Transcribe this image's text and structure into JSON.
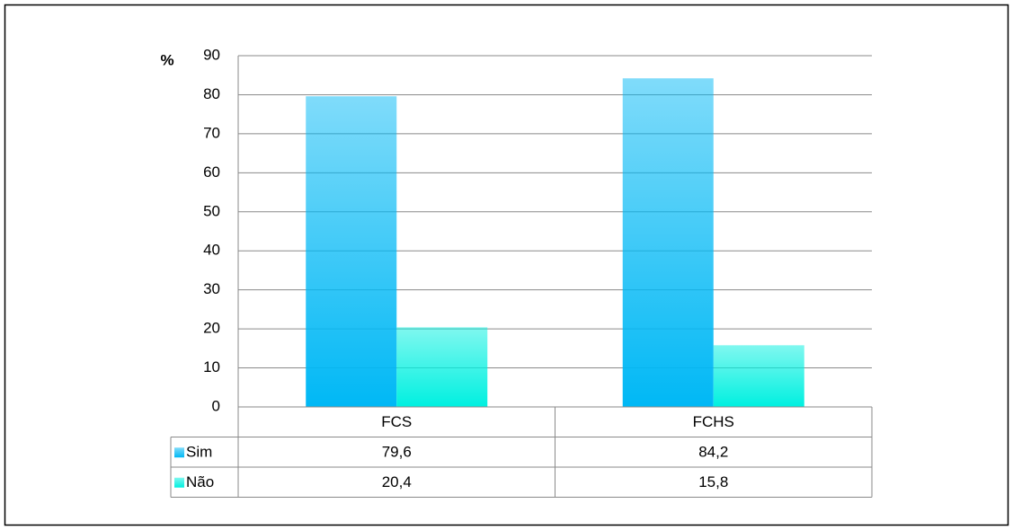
{
  "chart_data": {
    "type": "bar",
    "y_label": "%",
    "categories": [
      "FCS",
      "FCHS"
    ],
    "series": [
      {
        "name": "Sim",
        "color": "#00b8f5",
        "values": [
          79.6,
          84.2
        ],
        "value_labels": [
          "79,6",
          "84,2"
        ]
      },
      {
        "name": "Não",
        "color": "#00f0e0",
        "values": [
          20.4,
          15.8
        ],
        "value_labels": [
          "20,4",
          "15,8"
        ]
      }
    ],
    "ylim": [
      0,
      90
    ],
    "yticks": [
      0,
      10,
      20,
      30,
      40,
      50,
      60,
      70,
      80,
      90
    ],
    "grid": true,
    "data_table": true
  }
}
